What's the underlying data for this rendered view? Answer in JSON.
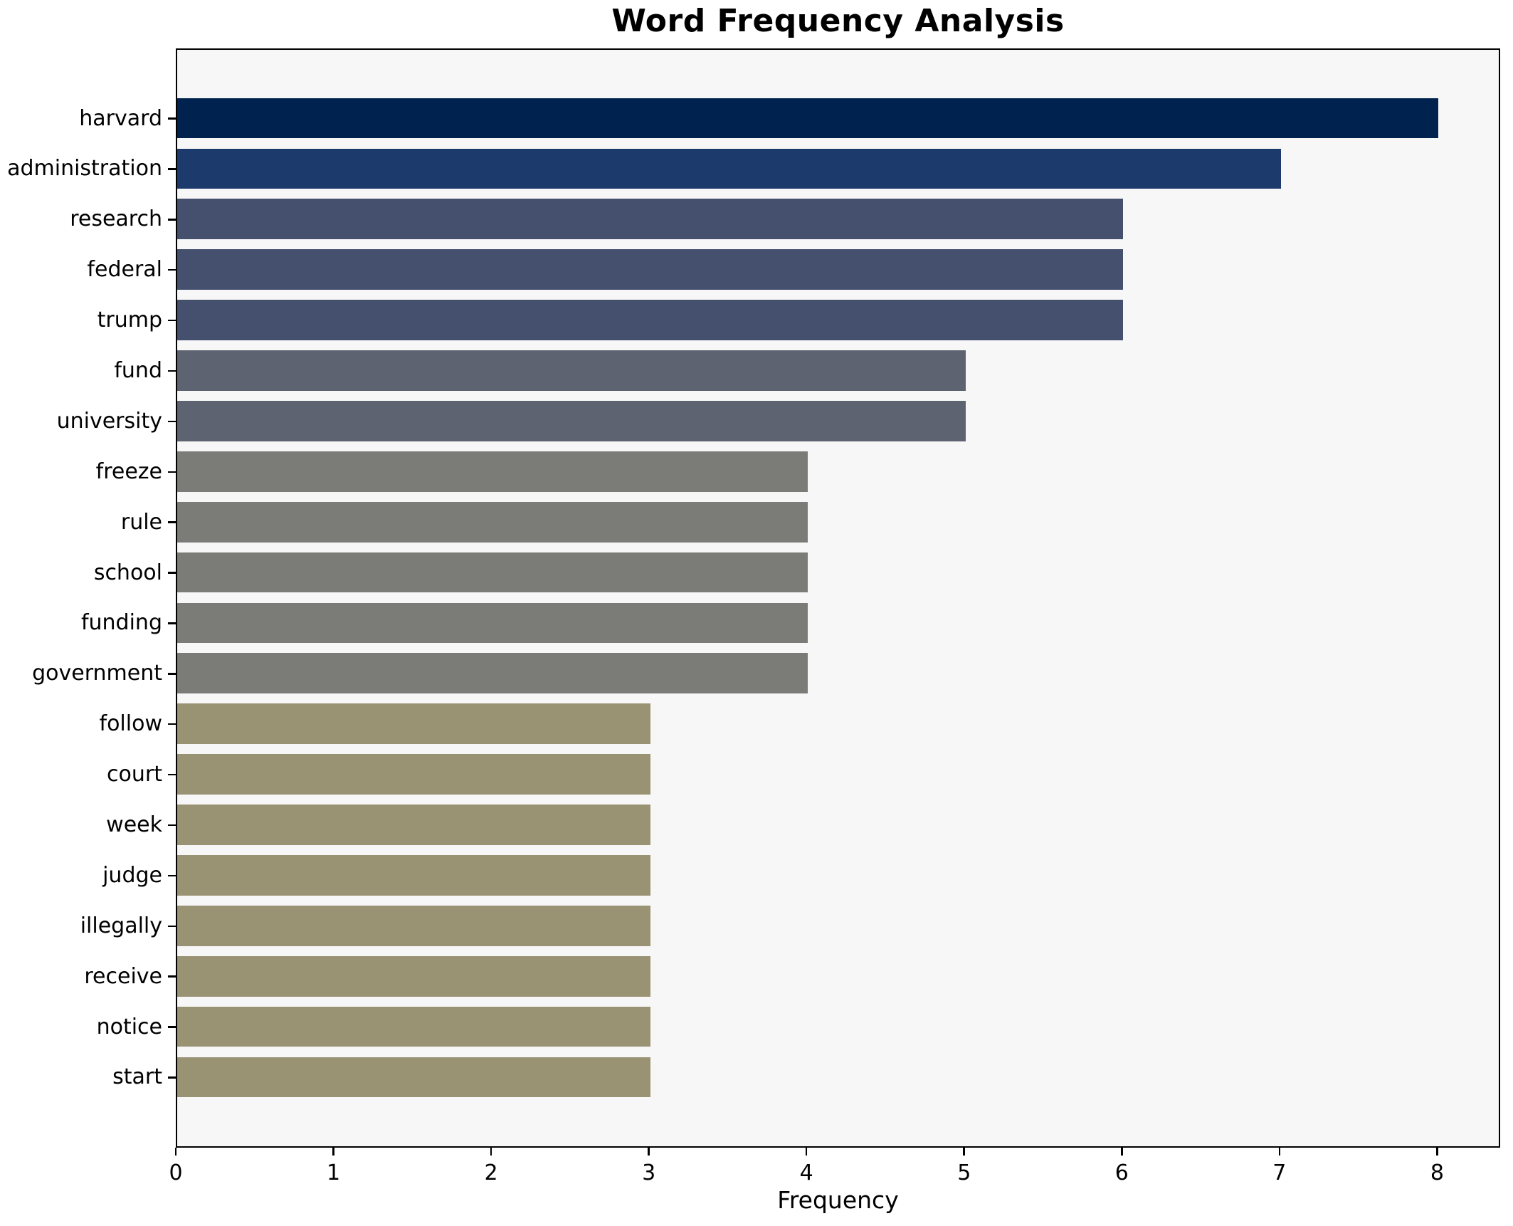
{
  "chart_data": {
    "type": "bar",
    "orientation": "horizontal",
    "title": "Word Frequency Analysis",
    "xlabel": "Frequency",
    "ylabel": "",
    "xlim": [
      0,
      8.4
    ],
    "xticks": [
      0,
      1,
      2,
      3,
      4,
      5,
      6,
      7,
      8
    ],
    "grid": false,
    "legend": false,
    "categories": [
      "harvard",
      "administration",
      "research",
      "federal",
      "trump",
      "fund",
      "university",
      "freeze",
      "rule",
      "school",
      "funding",
      "government",
      "follow",
      "court",
      "week",
      "judge",
      "illegally",
      "receive",
      "notice",
      "start"
    ],
    "values": [
      8,
      7,
      6,
      6,
      6,
      5,
      5,
      4,
      4,
      4,
      4,
      4,
      3,
      3,
      3,
      3,
      3,
      3,
      3,
      3
    ],
    "bar_colors": [
      "#00224e",
      "#1d3a6c",
      "#45506f",
      "#45506f",
      "#45506f",
      "#5d6370",
      "#5d6370",
      "#7b7b78",
      "#7b7b78",
      "#7b7b78",
      "#7b7b78",
      "#7b7b78",
      "#999273",
      "#999273",
      "#999273",
      "#999273",
      "#999273",
      "#999273",
      "#999273",
      "#999273"
    ],
    "colors": {
      "plot_background": "#f7f7f7",
      "figure_background": "#ffffff",
      "spine": "#000000",
      "text": "#000000"
    }
  }
}
